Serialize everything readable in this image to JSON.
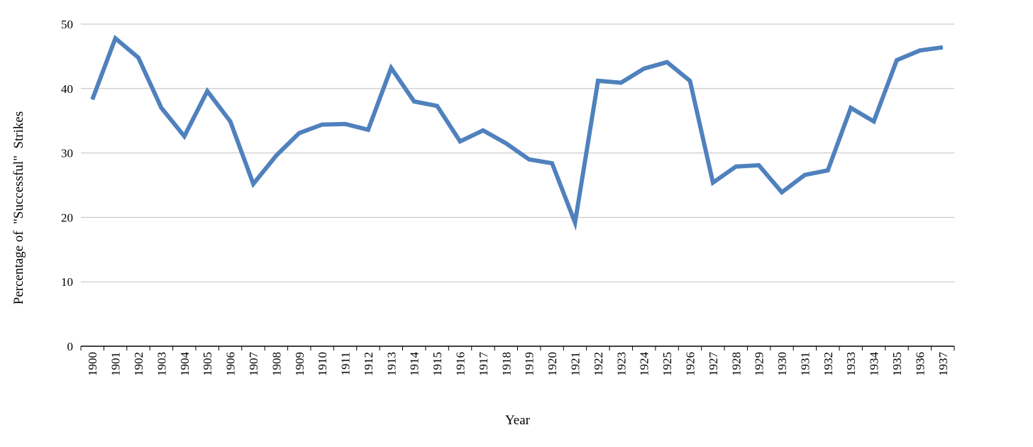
{
  "chart_data": {
    "type": "line",
    "title": "",
    "xlabel": "Year",
    "ylabel": "Percentage of  \"Successful\"  Strikes",
    "ylim": [
      0,
      50
    ],
    "yticks": [
      0,
      10,
      20,
      30,
      40,
      50
    ],
    "grid": true,
    "legend": "none",
    "colors": {
      "series": "#4f81bd",
      "grid": "#bfbfbf",
      "axis": "#000000"
    },
    "categories": [
      "1900",
      "1901",
      "1902",
      "1903",
      "1904",
      "1905",
      "1906",
      "1907",
      "1908",
      "1909",
      "1910",
      "1911",
      "1912",
      "1913",
      "1914",
      "1915",
      "1916",
      "1917",
      "1918",
      "1919",
      "1920",
      "1921",
      "1922",
      "1923",
      "1924",
      "1925",
      "1926",
      "1927",
      "1928",
      "1929",
      "1930",
      "1931",
      "1932",
      "1933",
      "1934",
      "1935",
      "1936",
      "1937"
    ],
    "series": [
      {
        "values": [
          38.3,
          47.8,
          44.8,
          37.0,
          32.6,
          39.6,
          34.9,
          25.2,
          29.6,
          33.1,
          34.4,
          34.5,
          33.6,
          43.2,
          38.0,
          37.3,
          31.8,
          33.5,
          31.5,
          29.0,
          28.4,
          19.2,
          41.2,
          40.9,
          43.1,
          44.1,
          41.2,
          25.4,
          27.9,
          28.1,
          23.9,
          26.6,
          27.3,
          37.0,
          34.9,
          44.4,
          45.9,
          46.4
        ]
      }
    ]
  }
}
